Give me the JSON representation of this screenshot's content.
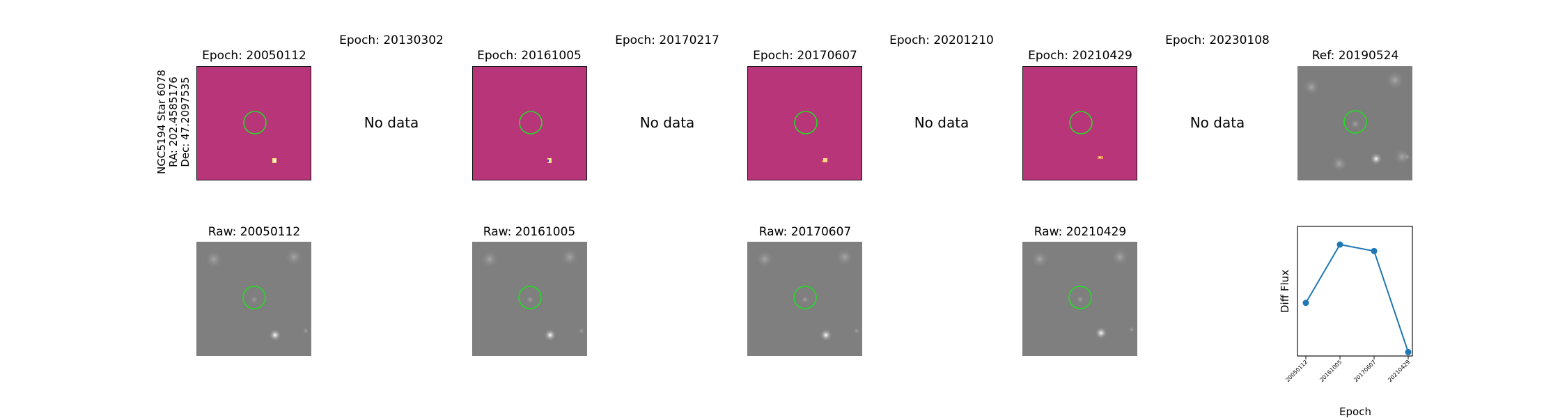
{
  "star_label": {
    "line1": "NGC5194 Star 6078",
    "line2": "RA: 202.4585176",
    "line3": "Dec: 47.2097535"
  },
  "top_row": [
    {
      "title": "Epoch: 20050112",
      "kind": "diff"
    },
    {
      "title": "Epoch: 20130302",
      "kind": "nodata",
      "note": "No data"
    },
    {
      "title": "Epoch: 20161005",
      "kind": "diff"
    },
    {
      "title": "Epoch: 20170217",
      "kind": "nodata",
      "note": "No data"
    },
    {
      "title": "Epoch: 20170607",
      "kind": "diff"
    },
    {
      "title": "Epoch: 20201210",
      "kind": "nodata",
      "note": "No data"
    },
    {
      "title": "Epoch: 20210429",
      "kind": "diff"
    },
    {
      "title": "Epoch: 20230108",
      "kind": "nodata",
      "note": "No data"
    },
    {
      "title": "Ref: 20190524",
      "kind": "ref"
    }
  ],
  "bottom_row": [
    {
      "title": "Raw: 20050112"
    },
    {
      "title": "Raw: 20161005"
    },
    {
      "title": "Raw: 20170607"
    },
    {
      "title": "Raw: 20210429"
    }
  ],
  "colors": {
    "diff_background": "#b8357a",
    "marker_circle": "#22dd22",
    "raw_background": "#7f7f7f",
    "line_series": "#1f77b4"
  },
  "chart_data": {
    "type": "line",
    "x": [
      "20050112",
      "20161005",
      "20170607",
      "20210429"
    ],
    "values": [
      0.41,
      0.86,
      0.81,
      0.03
    ],
    "ylim": [
      0,
      1
    ],
    "xlabel": "Epoch",
    "ylabel": "Diff Flux",
    "grid": false
  }
}
